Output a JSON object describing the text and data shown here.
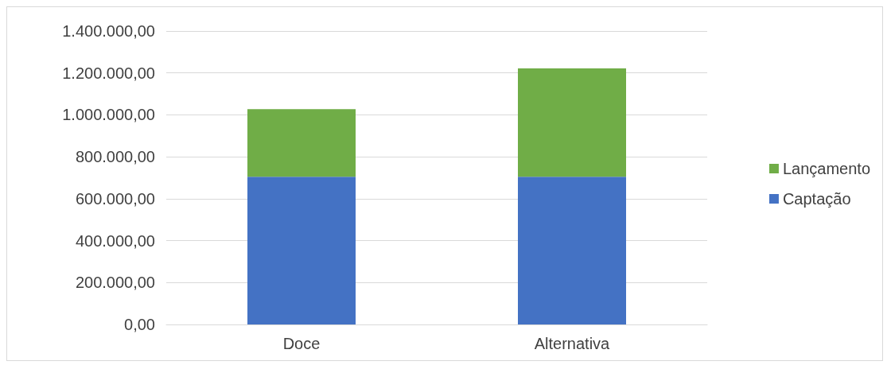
{
  "chart_data": {
    "type": "bar",
    "stacked": true,
    "categories": [
      "Doce",
      "Alternativa"
    ],
    "series": [
      {
        "name": "Captação",
        "color": "#4472c4",
        "values": [
          705000,
          705000
        ]
      },
      {
        "name": "Lançamento",
        "color": "#70ad47",
        "values": [
          322000,
          517000
        ]
      }
    ],
    "ylim": [
      0,
      1400000
    ],
    "yticks": [
      {
        "value": 0,
        "label": "0,00"
      },
      {
        "value": 200000,
        "label": "200.000,00"
      },
      {
        "value": 400000,
        "label": "400.000,00"
      },
      {
        "value": 600000,
        "label": "600.000,00"
      },
      {
        "value": 800000,
        "label": "800.000,00"
      },
      {
        "value": 1000000,
        "label": "1.000.000,00"
      },
      {
        "value": 1200000,
        "label": "1.200.000,00"
      },
      {
        "value": 1400000,
        "label": "1.400.000,00"
      }
    ],
    "grid": "y",
    "legend": "right"
  }
}
